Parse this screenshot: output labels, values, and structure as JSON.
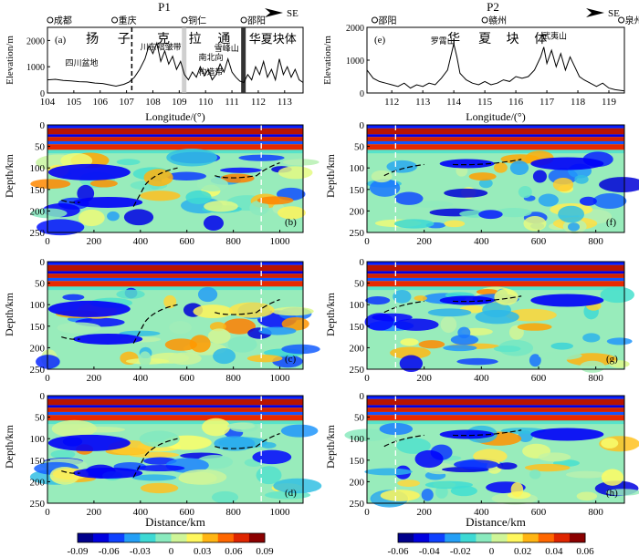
{
  "chart_data": {
    "type": "heatmap",
    "panels_titles": {
      "left": "P1",
      "right": "P2"
    },
    "direction_label": "SE",
    "profiles": [
      {
        "id": "P1",
        "elevation": {
          "letter": "(a)",
          "ylabel": "Elevation/m",
          "xlabel": "Longitude/(°)",
          "xlim": [
            104,
            113.7
          ],
          "ylim": [
            0,
            2500
          ],
          "xticks": [
            "104",
            "105",
            "106",
            "107",
            "108",
            "109",
            "110",
            "111",
            "112",
            "113"
          ],
          "yticks": [
            "0",
            "1000",
            "2000"
          ],
          "cities": [
            "成都",
            "重庆",
            "铜仁",
            "邵阳"
          ],
          "city_lon": [
            104.1,
            106.55,
            109.2,
            111.45
          ],
          "region_labels": [
            "四川盆地",
            "川东褶皱带",
            "雪峰山",
            "南北向",
            "构造带"
          ],
          "block_chars": [
            "扬",
            "子",
            "克",
            "拉",
            "通"
          ],
          "block_right": "华夏块体",
          "profile": [
            [
              104.0,
              500
            ],
            [
              104.3,
              520
            ],
            [
              104.6,
              480
            ],
            [
              104.9,
              460
            ],
            [
              105.2,
              430
            ],
            [
              105.5,
              420
            ],
            [
              105.8,
              380
            ],
            [
              106.1,
              360
            ],
            [
              106.4,
              300
            ],
            [
              106.6,
              260
            ],
            [
              106.9,
              330
            ],
            [
              107.1,
              420
            ],
            [
              107.3,
              600
            ],
            [
              107.5,
              900
            ],
            [
              107.7,
              1300
            ],
            [
              107.85,
              1800
            ],
            [
              108.0,
              1500
            ],
            [
              108.15,
              1900
            ],
            [
              108.3,
              1200
            ],
            [
              108.45,
              1600
            ],
            [
              108.6,
              1100
            ],
            [
              108.75,
              1400
            ],
            [
              108.9,
              900
            ],
            [
              109.05,
              1200
            ],
            [
              109.2,
              700
            ],
            [
              109.35,
              500
            ],
            [
              109.5,
              800
            ],
            [
              109.65,
              600
            ],
            [
              109.8,
              1000
            ],
            [
              109.95,
              650
            ],
            [
              110.1,
              900
            ],
            [
              110.25,
              500
            ],
            [
              110.4,
              700
            ],
            [
              110.55,
              1100
            ],
            [
              110.7,
              800
            ],
            [
              110.85,
              1300
            ],
            [
              111.0,
              800
            ],
            [
              111.15,
              600
            ],
            [
              111.3,
              450
            ],
            [
              111.45,
              400
            ],
            [
              111.6,
              700
            ],
            [
              111.75,
              500
            ],
            [
              111.9,
              1000
            ],
            [
              112.05,
              700
            ],
            [
              112.2,
              1200
            ],
            [
              112.35,
              600
            ],
            [
              112.5,
              900
            ],
            [
              112.65,
              500
            ],
            [
              112.8,
              1300
            ],
            [
              112.95,
              700
            ],
            [
              113.1,
              1000
            ],
            [
              113.25,
              600
            ],
            [
              113.4,
              900
            ],
            [
              113.55,
              500
            ],
            [
              113.7,
              400
            ]
          ]
        },
        "sections": [
          {
            "letter": "(b)"
          },
          {
            "letter": "(c)"
          },
          {
            "letter": "(d)"
          }
        ],
        "distance_max": 1100,
        "xticks": [
          "0",
          "200",
          "400",
          "600",
          "800",
          "1000"
        ]
      },
      {
        "id": "P2",
        "elevation": {
          "letter": "(e)",
          "ylabel": "Elevation/m",
          "xlabel": "Longitude/(°)",
          "xlim": [
            111.2,
            119.5
          ],
          "ylim": [
            0,
            2000
          ],
          "xticks": [
            "112",
            "113",
            "114",
            "115",
            "116",
            "117",
            "118",
            "119"
          ],
          "yticks": [
            "0",
            "1000",
            "2000"
          ],
          "cities": [
            "邵阳",
            "赣州",
            "泉州"
          ],
          "city_lon": [
            111.45,
            115.0,
            119.4
          ],
          "region_labels": [
            "罗霄山",
            "武夷山"
          ],
          "block_chars": [
            "华",
            "夏",
            "块",
            "体"
          ],
          "profile": [
            [
              111.2,
              700
            ],
            [
              111.4,
              450
            ],
            [
              111.6,
              350
            ],
            [
              111.8,
              300
            ],
            [
              112.0,
              250
            ],
            [
              112.2,
              200
            ],
            [
              112.4,
              300
            ],
            [
              112.6,
              150
            ],
            [
              112.8,
              250
            ],
            [
              113.0,
              200
            ],
            [
              113.2,
              300
            ],
            [
              113.4,
              250
            ],
            [
              113.6,
              450
            ],
            [
              113.8,
              700
            ],
            [
              114.0,
              1500
            ],
            [
              114.1,
              1100
            ],
            [
              114.2,
              600
            ],
            [
              114.4,
              400
            ],
            [
              114.6,
              300
            ],
            [
              114.8,
              250
            ],
            [
              115.0,
              350
            ],
            [
              115.2,
              250
            ],
            [
              115.4,
              300
            ],
            [
              115.6,
              400
            ],
            [
              115.8,
              350
            ],
            [
              116.0,
              500
            ],
            [
              116.2,
              450
            ],
            [
              116.4,
              500
            ],
            [
              116.6,
              700
            ],
            [
              116.8,
              1100
            ],
            [
              116.9,
              1400
            ],
            [
              117.0,
              900
            ],
            [
              117.15,
              1300
            ],
            [
              117.3,
              800
            ],
            [
              117.45,
              1200
            ],
            [
              117.6,
              700
            ],
            [
              117.75,
              1100
            ],
            [
              117.9,
              800
            ],
            [
              118.05,
              500
            ],
            [
              118.2,
              400
            ],
            [
              118.4,
              300
            ],
            [
              118.6,
              200
            ],
            [
              118.8,
              300
            ],
            [
              119.0,
              150
            ],
            [
              119.2,
              100
            ],
            [
              119.5,
              60
            ]
          ]
        },
        "sections": [
          {
            "letter": "(f)"
          },
          {
            "letter": "(g)"
          },
          {
            "letter": "(h)"
          }
        ],
        "distance_max": 900,
        "xticks": [
          "0",
          "200",
          "400",
          "600",
          "800"
        ]
      }
    ],
    "section_ylabel": "Depth/km",
    "section_xlabel": "Distance/km",
    "section_ylim": [
      0,
      250
    ],
    "section_yticks": [
      "0",
      "50",
      "100",
      "150",
      "200",
      "250"
    ],
    "colorbar_left": {
      "range": [
        -0.09,
        0.09
      ],
      "ticks": [
        "-0.09",
        "-0.06",
        "-0.03",
        "0",
        "0.03",
        "0.06",
        "0.09"
      ]
    },
    "colorbar_right": {
      "range": [
        -0.06,
        0.06
      ],
      "ticks": [
        "-0.06",
        "-0.04",
        "-0.02",
        "0",
        "0.02",
        "0.04",
        "0.06"
      ]
    },
    "colormap": [
      "#00008b",
      "#0000ff",
      "#1e90ff",
      "#40e0d0",
      "#b4f0b4",
      "#ffff66",
      "#ffa500",
      "#ff3300",
      "#8b0000"
    ]
  }
}
